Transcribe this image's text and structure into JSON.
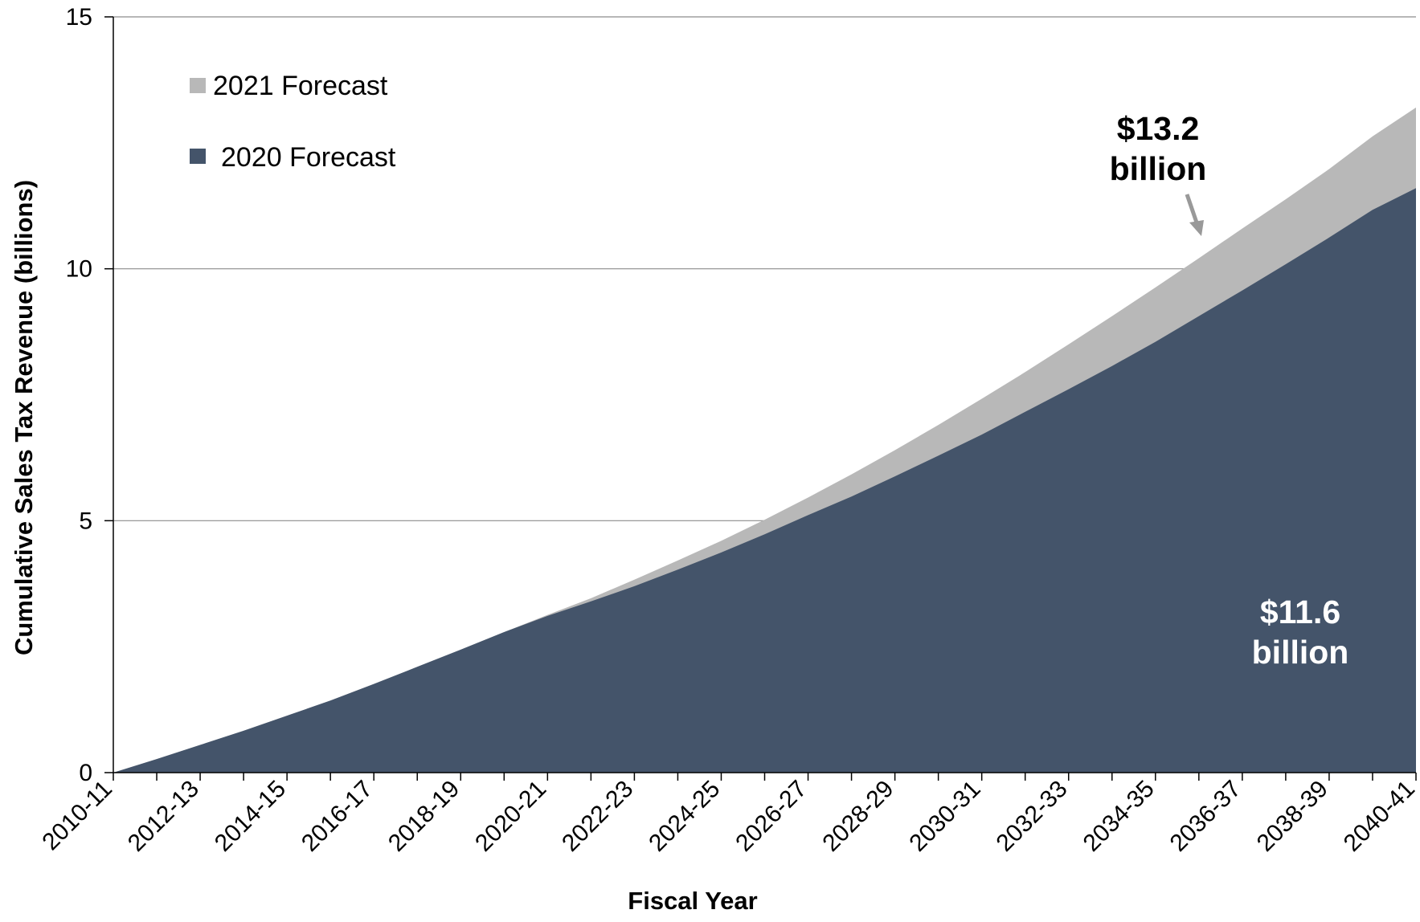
{
  "chart_data": {
    "type": "area",
    "xlabel": "Fiscal Year",
    "ylabel": "Cumulative Sales  Tax Revenue  (billions)",
    "ylim": [
      0,
      15
    ],
    "yticks": [
      "0",
      "5",
      "10",
      "15"
    ],
    "categories": [
      "2010-11",
      "2011-12",
      "2012-13",
      "2013-14",
      "2014-15",
      "2015-16",
      "2016-17",
      "2017-18",
      "2018-19",
      "2019-20",
      "2020-21",
      "2021-22",
      "2022-23",
      "2023-24",
      "2024-25",
      "2025-26",
      "2026-27",
      "2027-28",
      "2028-29",
      "2029-30",
      "2030-31",
      "2031-32",
      "2032-33",
      "2033-34",
      "2034-35",
      "2035-36",
      "2036-37",
      "2037-38",
      "2038-39",
      "2039-40",
      "2040-41"
    ],
    "xtick_labels": [
      "2010-11",
      "2012-13",
      "2014-15",
      "2016-17",
      "2018-19",
      "2020-21",
      "2022-23",
      "2024-25",
      "2026-27",
      "2028-29",
      "2030-31",
      "2032-33",
      "2034-35",
      "2036-37",
      "2038-39",
      "2040-41"
    ],
    "grid": "horizontal",
    "legend_position": "top-left",
    "series": [
      {
        "name": "2021 Forecast",
        "color": "#b8b8b8",
        "values": [
          0,
          0.27,
          0.55,
          0.83,
          1.13,
          1.43,
          1.76,
          2.1,
          2.44,
          2.79,
          3.13,
          3.46,
          3.83,
          4.21,
          4.6,
          5.02,
          5.46,
          5.92,
          6.4,
          6.9,
          7.42,
          7.95,
          8.5,
          9.06,
          9.63,
          10.21,
          10.8,
          11.38,
          11.98,
          12.63,
          13.2
        ]
      },
      {
        "name": "2020 Forecast",
        "color": "#44546a",
        "values": [
          0,
          0.27,
          0.55,
          0.83,
          1.13,
          1.43,
          1.76,
          2.1,
          2.44,
          2.79,
          3.11,
          3.4,
          3.7,
          4.03,
          4.37,
          4.73,
          5.11,
          5.48,
          5.88,
          6.29,
          6.71,
          7.16,
          7.61,
          8.07,
          8.55,
          9.06,
          9.57,
          10.09,
          10.62,
          11.17,
          11.6
        ]
      }
    ],
    "annotations": [
      {
        "text": "$13.2\nbillion",
        "color": "#000000",
        "line1": "$13.2",
        "line2": "billion"
      },
      {
        "text": "$11.6\nbillion",
        "color": "#ffffff",
        "line1": "$11.6",
        "line2": "billion"
      }
    ]
  }
}
